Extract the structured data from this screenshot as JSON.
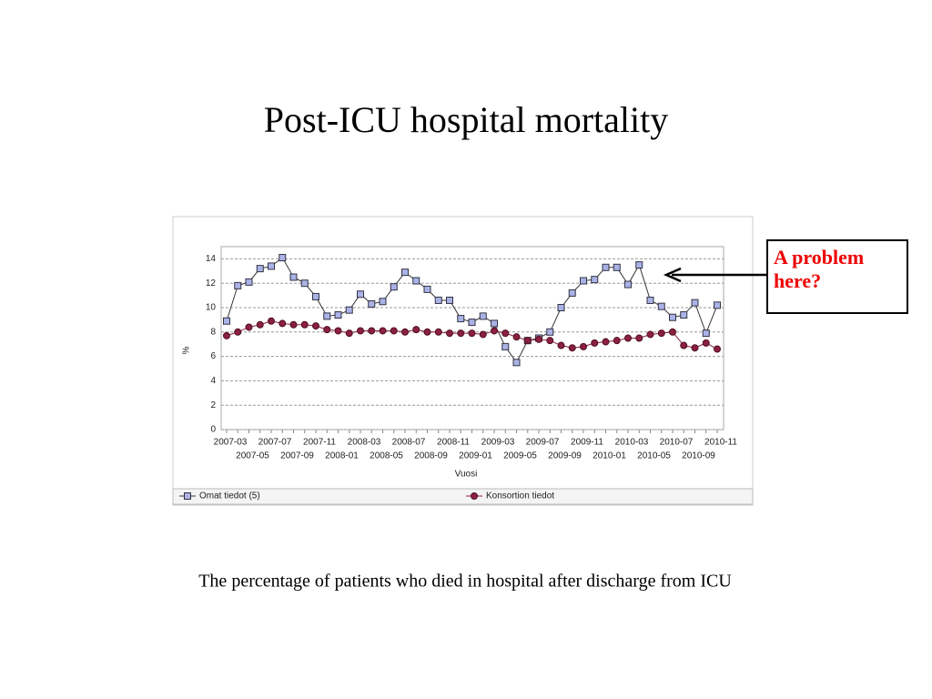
{
  "chart_data": {
    "type": "line",
    "title": "Post-ICU hospital mortality",
    "caption": "The percentage of patients who died in hospital after discharge from ICU",
    "annotation": "A problem here?",
    "y_label": "%",
    "x_label": "Vuosi",
    "categories": [
      "2007-03",
      null,
      "2007-05",
      null,
      "2007-07",
      null,
      "2007-09",
      null,
      "2007-11",
      null,
      "2008-01",
      null,
      "2008-03",
      null,
      "2008-05",
      null,
      "2008-07",
      null,
      "2008-09",
      null,
      "2008-11",
      null,
      "2009-01",
      null,
      "2009-03",
      null,
      "2009-05",
      null,
      "2009-07",
      null,
      "2009-09",
      null,
      "2009-11",
      null,
      "2010-01",
      null,
      "2010-03",
      null,
      "2010-05",
      null,
      "2010-07",
      null,
      "2010-09",
      null,
      "2010-11"
    ],
    "series": [
      {
        "name": "Omat tiedot (5)",
        "color": "#aab2e6",
        "values": [
          8.9,
          11.8,
          12.1,
          13.2,
          13.4,
          14.1,
          12.5,
          12.0,
          10.9,
          9.3,
          9.4,
          9.8,
          11.1,
          10.3,
          10.5,
          11.7,
          12.9,
          12.2,
          11.5,
          10.6,
          10.6,
          9.1,
          8.8,
          9.3,
          8.7,
          6.8,
          5.5,
          7.3,
          7.5,
          8.0,
          10.0,
          11.2,
          12.2,
          12.3,
          13.3,
          13.3,
          11.9,
          13.5,
          10.6,
          10.1,
          9.2,
          9.4,
          10.4,
          7.9,
          10.2
        ]
      },
      {
        "name": "Konsortion tiedot",
        "color": "#8b2040",
        "values": [
          7.7,
          8.0,
          8.4,
          8.6,
          8.9,
          8.7,
          8.6,
          8.6,
          8.5,
          8.2,
          8.1,
          7.9,
          8.1,
          8.1,
          8.1,
          8.1,
          8.0,
          8.2,
          8.0,
          8.0,
          7.9,
          7.9,
          7.9,
          7.8,
          8.1,
          7.9,
          7.6,
          7.3,
          7.4,
          7.3,
          6.9,
          6.7,
          6.8,
          7.1,
          7.2,
          7.3,
          7.5,
          7.5,
          7.8,
          7.9,
          8.0,
          6.9,
          6.7,
          7.1,
          6.6
        ]
      }
    ],
    "ylim": [
      0,
      15
    ],
    "yticks": [
      0,
      2,
      4,
      6,
      8,
      10,
      12,
      14
    ],
    "grid": true
  }
}
